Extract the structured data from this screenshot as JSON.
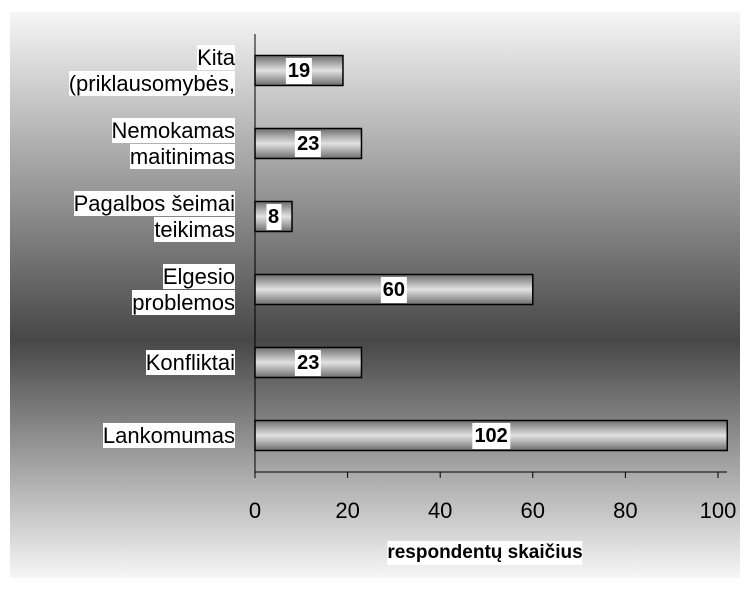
{
  "chart_data": {
    "type": "bar",
    "orientation": "horizontal",
    "categories": [
      "Kita\n(priklausomybės,",
      "Nemokamas\nmaitinimas",
      "Pagalbos šeimai\nteikimas",
      "Elgesio\nproblemos",
      "Konfliktai",
      "Lankomumas"
    ],
    "values": [
      19,
      23,
      8,
      60,
      23,
      102
    ],
    "xlabel": "respondentų skaičius",
    "xlim": [
      0,
      100
    ],
    "xticks": [
      0,
      20,
      40,
      60,
      80,
      100
    ],
    "grid": false
  }
}
